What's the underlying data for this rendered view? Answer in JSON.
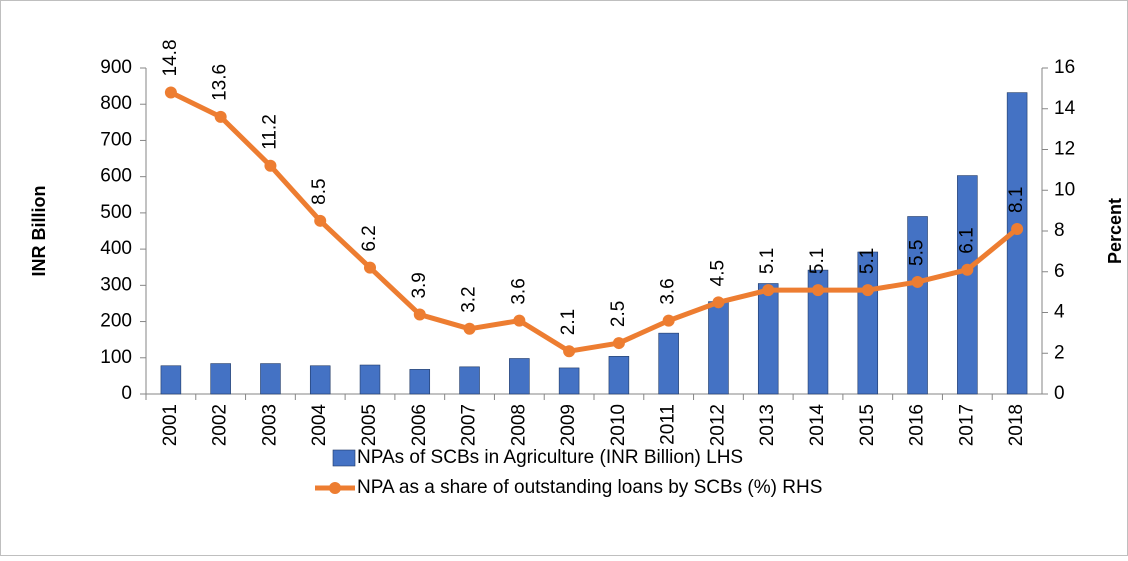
{
  "chart_data": {
    "type": "bar-line",
    "categories": [
      "2001",
      "2002",
      "2003",
      "2004",
      "2005",
      "2006",
      "2007",
      "2008",
      "2009",
      "2010",
      "2011",
      "2012",
      "2013",
      "2014",
      "2015",
      "2016",
      "2017",
      "2018"
    ],
    "series": [
      {
        "name": "NPAs of SCBs in Agriculture (INR Billion) LHS",
        "type": "bar",
        "color": "#4472c4",
        "axis": "y",
        "values": [
          78,
          84,
          84,
          78,
          80,
          68,
          75,
          98,
          72,
          104,
          168,
          255,
          305,
          342,
          392,
          490,
          603,
          832
        ]
      },
      {
        "name": "NPA as a share of outstanding loans by SCBs (%) RHS",
        "type": "line",
        "color": "#ed7d31",
        "axis": "y2",
        "values": [
          14.8,
          13.6,
          11.2,
          8.5,
          6.2,
          3.9,
          3.2,
          3.6,
          2.1,
          2.5,
          3.6,
          4.5,
          5.1,
          5.1,
          5.1,
          5.5,
          6.1,
          8.1
        ]
      }
    ],
    "ylabel": "INR Billion",
    "y2label": "Percent",
    "ylim": [
      0,
      900
    ],
    "yticks": [
      0,
      100,
      200,
      300,
      400,
      500,
      600,
      700,
      800,
      900
    ],
    "y2lim": [
      0,
      16
    ],
    "y2ticks": [
      0,
      2,
      4,
      6,
      8,
      10,
      12,
      14,
      16
    ],
    "legend": "bottom"
  }
}
